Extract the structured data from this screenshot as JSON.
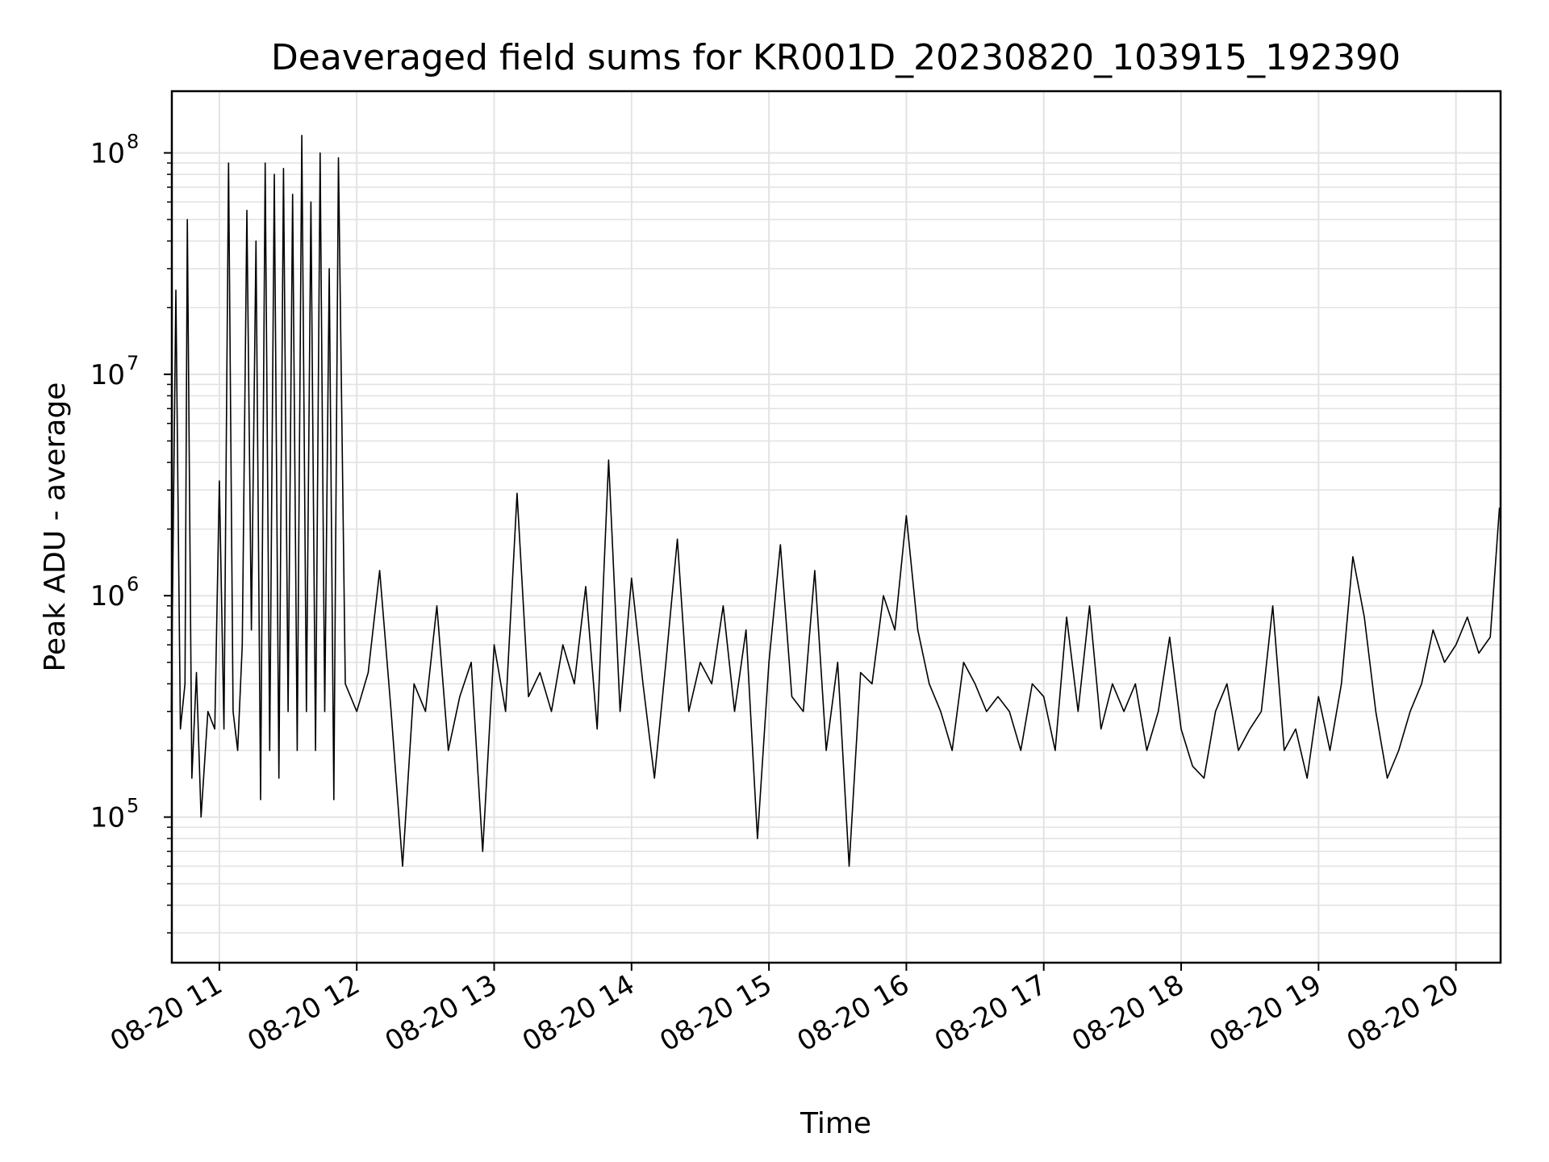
{
  "chart_data": {
    "type": "line",
    "title": "Deaveraged field sums for KR001D_20230820_103915_192390",
    "xlabel": "Time",
    "ylabel": "Peak ADU - average",
    "yscale": "log",
    "ylim": [
      22000,
      190000000
    ],
    "xlim": [
      "2023-08-20 10:39:15",
      "2023-08-20 20:19:30"
    ],
    "grid": true,
    "x_ticks": [
      {
        "value": "2023-08-20 11:00",
        "label": "08-20 11"
      },
      {
        "value": "2023-08-20 12:00",
        "label": "08-20 12"
      },
      {
        "value": "2023-08-20 13:00",
        "label": "08-20 13"
      },
      {
        "value": "2023-08-20 14:00",
        "label": "08-20 14"
      },
      {
        "value": "2023-08-20 15:00",
        "label": "08-20 15"
      },
      {
        "value": "2023-08-20 16:00",
        "label": "08-20 16"
      },
      {
        "value": "2023-08-20 17:00",
        "label": "08-20 17"
      },
      {
        "value": "2023-08-20 18:00",
        "label": "08-20 18"
      },
      {
        "value": "2023-08-20 19:00",
        "label": "08-20 19"
      },
      {
        "value": "2023-08-20 20:00",
        "label": "08-20 20"
      }
    ],
    "y_ticks": [
      {
        "value": 100000,
        "base": "10",
        "exp": "5"
      },
      {
        "value": 1000000,
        "base": "10",
        "exp": "6"
      },
      {
        "value": 10000000,
        "base": "10",
        "exp": "7"
      },
      {
        "value": 100000000,
        "base": "10",
        "exp": "8"
      }
    ],
    "series": [
      {
        "color": "#000000",
        "x": [
          "2023-08-20 10:39",
          "2023-08-20 10:41",
          "2023-08-20 10:43",
          "2023-08-20 10:45",
          "2023-08-20 10:46",
          "2023-08-20 10:48",
          "2023-08-20 10:50",
          "2023-08-20 10:52",
          "2023-08-20 10:55",
          "2023-08-20 10:58",
          "2023-08-20 11:00",
          "2023-08-20 11:02",
          "2023-08-20 11:04",
          "2023-08-20 11:06",
          "2023-08-20 11:08",
          "2023-08-20 11:10",
          "2023-08-20 11:12",
          "2023-08-20 11:14",
          "2023-08-20 11:16",
          "2023-08-20 11:18",
          "2023-08-20 11:20",
          "2023-08-20 11:22",
          "2023-08-20 11:24",
          "2023-08-20 11:26",
          "2023-08-20 11:28",
          "2023-08-20 11:30",
          "2023-08-20 11:32",
          "2023-08-20 11:34",
          "2023-08-20 11:36",
          "2023-08-20 11:38",
          "2023-08-20 11:40",
          "2023-08-20 11:42",
          "2023-08-20 11:44",
          "2023-08-20 11:46",
          "2023-08-20 11:48",
          "2023-08-20 11:50",
          "2023-08-20 11:52",
          "2023-08-20 11:55",
          "2023-08-20 12:00",
          "2023-08-20 12:05",
          "2023-08-20 12:10",
          "2023-08-20 12:15",
          "2023-08-20 12:20",
          "2023-08-20 12:25",
          "2023-08-20 12:30",
          "2023-08-20 12:35",
          "2023-08-20 12:40",
          "2023-08-20 12:45",
          "2023-08-20 12:50",
          "2023-08-20 12:55",
          "2023-08-20 13:00",
          "2023-08-20 13:05",
          "2023-08-20 13:10",
          "2023-08-20 13:15",
          "2023-08-20 13:20",
          "2023-08-20 13:25",
          "2023-08-20 13:30",
          "2023-08-20 13:35",
          "2023-08-20 13:40",
          "2023-08-20 13:45",
          "2023-08-20 13:50",
          "2023-08-20 13:55",
          "2023-08-20 14:00",
          "2023-08-20 14:05",
          "2023-08-20 14:10",
          "2023-08-20 14:15",
          "2023-08-20 14:20",
          "2023-08-20 14:25",
          "2023-08-20 14:30",
          "2023-08-20 14:35",
          "2023-08-20 14:40",
          "2023-08-20 14:45",
          "2023-08-20 14:50",
          "2023-08-20 14:55",
          "2023-08-20 15:00",
          "2023-08-20 15:05",
          "2023-08-20 15:10",
          "2023-08-20 15:15",
          "2023-08-20 15:20",
          "2023-08-20 15:25",
          "2023-08-20 15:30",
          "2023-08-20 15:35",
          "2023-08-20 15:40",
          "2023-08-20 15:45",
          "2023-08-20 15:50",
          "2023-08-20 15:55",
          "2023-08-20 16:00",
          "2023-08-20 16:05",
          "2023-08-20 16:10",
          "2023-08-20 16:15",
          "2023-08-20 16:20",
          "2023-08-20 16:25",
          "2023-08-20 16:30",
          "2023-08-20 16:35",
          "2023-08-20 16:40",
          "2023-08-20 16:45",
          "2023-08-20 16:50",
          "2023-08-20 16:55",
          "2023-08-20 17:00",
          "2023-08-20 17:05",
          "2023-08-20 17:10",
          "2023-08-20 17:15",
          "2023-08-20 17:20",
          "2023-08-20 17:25",
          "2023-08-20 17:30",
          "2023-08-20 17:35",
          "2023-08-20 17:40",
          "2023-08-20 17:45",
          "2023-08-20 17:50",
          "2023-08-20 17:55",
          "2023-08-20 18:00",
          "2023-08-20 18:05",
          "2023-08-20 18:10",
          "2023-08-20 18:15",
          "2023-08-20 18:20",
          "2023-08-20 18:25",
          "2023-08-20 18:30",
          "2023-08-20 18:35",
          "2023-08-20 18:40",
          "2023-08-20 18:45",
          "2023-08-20 18:50",
          "2023-08-20 18:55",
          "2023-08-20 19:00",
          "2023-08-20 19:05",
          "2023-08-20 19:10",
          "2023-08-20 19:15",
          "2023-08-20 19:20",
          "2023-08-20 19:25",
          "2023-08-20 19:30",
          "2023-08-20 19:35",
          "2023-08-20 19:40",
          "2023-08-20 19:45",
          "2023-08-20 19:50",
          "2023-08-20 19:55",
          "2023-08-20 20:00",
          "2023-08-20 20:05",
          "2023-08-20 20:10",
          "2023-08-20 20:15",
          "2023-08-20 20:19"
        ],
        "y": [
          300000,
          24000000,
          250000,
          400000,
          50000000,
          150000,
          450000,
          100000,
          300000,
          250000,
          3300000,
          250000,
          90000000,
          300000,
          200000,
          600000,
          55000000,
          700000,
          40000000,
          120000,
          90000000,
          200000,
          80000000,
          150000,
          85000000,
          300000,
          65000000,
          200000,
          120000000,
          300000,
          60000000,
          200000,
          100000000,
          300000,
          30000000,
          120000,
          95000000,
          400000,
          300000,
          450000,
          1300000,
          300000,
          60000,
          400000,
          300000,
          900000,
          200000,
          350000,
          500000,
          70000,
          600000,
          300000,
          2900000,
          350000,
          450000,
          300000,
          600000,
          400000,
          1100000,
          250000,
          4100000,
          300000,
          1200000,
          400000,
          150000,
          500000,
          1800000,
          300000,
          500000,
          400000,
          900000,
          300000,
          700000,
          80000,
          500000,
          1700000,
          350000,
          300000,
          1300000,
          200000,
          500000,
          60000,
          450000,
          400000,
          1000000,
          700000,
          2300000,
          700000,
          400000,
          300000,
          200000,
          500000,
          400000,
          300000,
          350000,
          300000,
          200000,
          400000,
          350000,
          200000,
          800000,
          300000,
          900000,
          250000,
          400000,
          300000,
          400000,
          200000,
          300000,
          650000,
          250000,
          170000,
          150000,
          300000,
          400000,
          200000,
          250000,
          300000,
          900000,
          200000,
          250000,
          150000,
          350000,
          200000,
          400000,
          1500000,
          800000,
          300000,
          150000,
          200000,
          300000,
          400000,
          700000,
          500000,
          600000,
          800000,
          550000,
          650000,
          2500000
        ]
      }
    ]
  }
}
